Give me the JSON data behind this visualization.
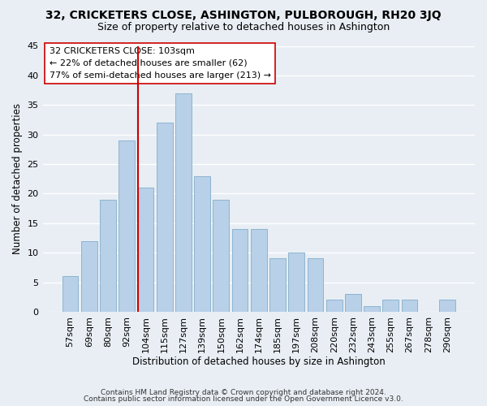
{
  "title": "32, CRICKETERS CLOSE, ASHINGTON, PULBOROUGH, RH20 3JQ",
  "subtitle": "Size of property relative to detached houses in Ashington",
  "xlabel": "Distribution of detached houses by size in Ashington",
  "ylabel": "Number of detached properties",
  "footer_line1": "Contains HM Land Registry data © Crown copyright and database right 2024.",
  "footer_line2": "Contains public sector information licensed under the Open Government Licence v3.0.",
  "bar_labels": [
    "57sqm",
    "69sqm",
    "80sqm",
    "92sqm",
    "104sqm",
    "115sqm",
    "127sqm",
    "139sqm",
    "150sqm",
    "162sqm",
    "174sqm",
    "185sqm",
    "197sqm",
    "208sqm",
    "220sqm",
    "232sqm",
    "243sqm",
    "255sqm",
    "267sqm",
    "278sqm",
    "290sqm"
  ],
  "bar_values": [
    6,
    12,
    19,
    29,
    21,
    32,
    37,
    23,
    19,
    14,
    14,
    9,
    10,
    9,
    2,
    3,
    1,
    2,
    2,
    0,
    2
  ],
  "bar_color": "#b8d0e8",
  "bar_edge_color": "#8db4d0",
  "highlight_index": 4,
  "highlight_color": "#cc0000",
  "ylim": [
    0,
    45
  ],
  "yticks": [
    0,
    5,
    10,
    15,
    20,
    25,
    30,
    35,
    40,
    45
  ],
  "annotation_title": "32 CRICKETERS CLOSE: 103sqm",
  "annotation_line1": "← 22% of detached houses are smaller (62)",
  "annotation_line2": "77% of semi-detached houses are larger (213) →",
  "background_color": "#e8eef4",
  "grid_color": "#ffffff",
  "title_fontsize": 10,
  "subtitle_fontsize": 9,
  "axis_label_fontsize": 8.5,
  "tick_fontsize": 8,
  "annotation_fontsize": 8,
  "footer_fontsize": 6.5
}
